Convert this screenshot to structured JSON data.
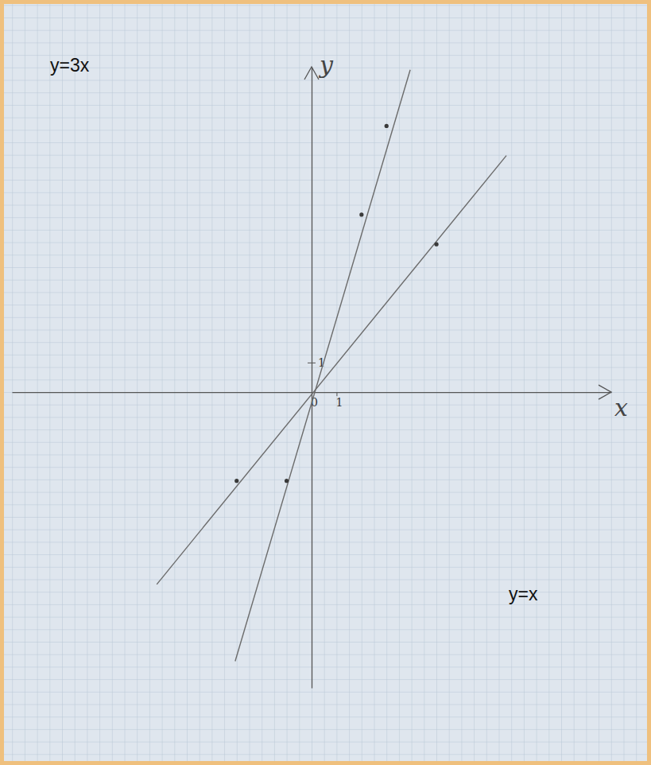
{
  "chart_data": {
    "type": "line",
    "xlabel": "x",
    "ylabel": "y",
    "xlim": [
      -12,
      12
    ],
    "ylim": [
      -10,
      11
    ],
    "xticks": [
      0,
      1
    ],
    "yticks": [
      1
    ],
    "series": [
      {
        "name": "y=3x",
        "type": "line",
        "color": "#6b6b6b",
        "x": [
          -3.06,
          3.95
        ],
        "values": [
          -9.1,
          10.9
        ]
      },
      {
        "name": "y=x",
        "type": "line",
        "color": "#6b6b6b",
        "x": [
          -6.2,
          7.8
        ],
        "values": [
          -6.5,
          8.0
        ]
      },
      {
        "type": "scatter",
        "marker": "dot",
        "color": "#3a3a3a",
        "x": [
          -1,
          2,
          3
        ],
        "values": [
          -3,
          6,
          9
        ]
      },
      {
        "type": "scatter",
        "marker": "dot",
        "color": "#3a3a3a",
        "x": [
          -3,
          5
        ],
        "values": [
          -3,
          5
        ]
      }
    ]
  }
}
